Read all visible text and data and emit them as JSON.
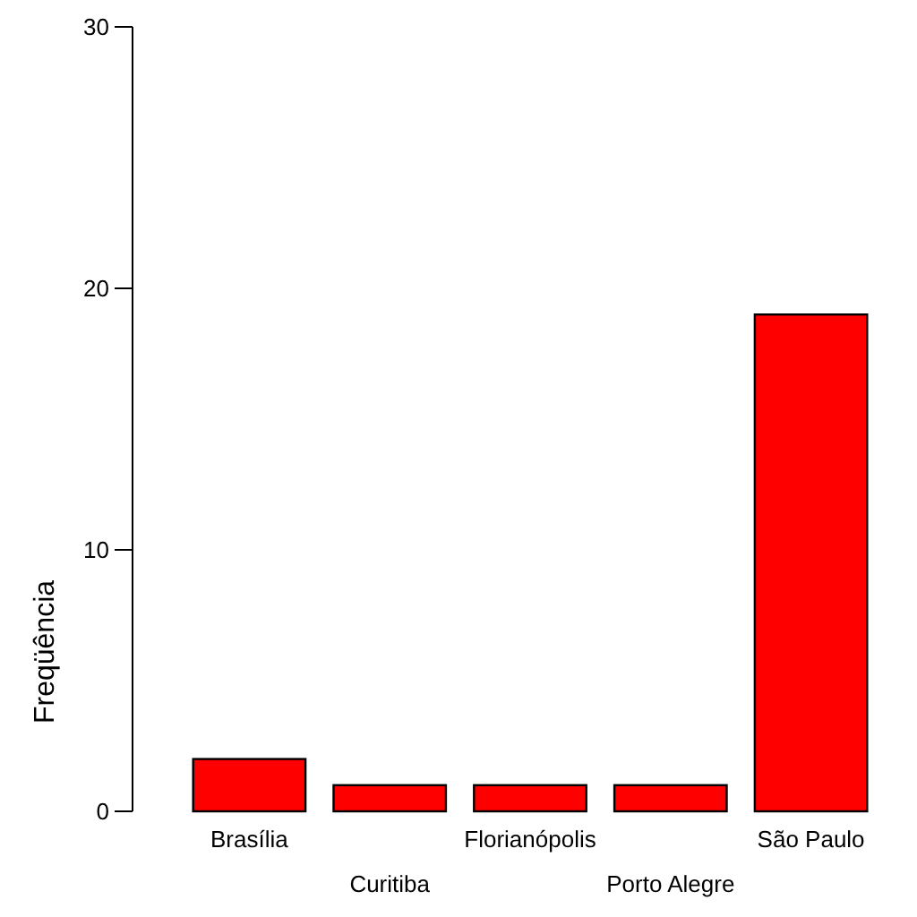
{
  "chart_data": {
    "type": "bar",
    "ylabel": "Freqüência",
    "categories": [
      "Brasília",
      "Curitiba",
      "Florianópolis",
      "Porto Alegre",
      "São Paulo"
    ],
    "values": [
      2,
      1,
      1,
      1,
      19
    ],
    "color": "#ff0000",
    "ylim": [
      0,
      30
    ],
    "yticks": [
      0,
      10,
      20,
      30
    ],
    "grid": false
  }
}
